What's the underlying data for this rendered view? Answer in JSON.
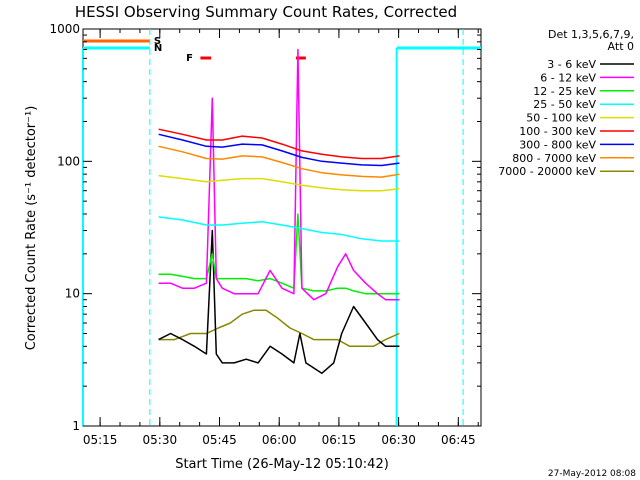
{
  "chart_data": {
    "type": "line",
    "title": "HESSI Observing Summary Count Rates, Corrected",
    "xlabel": "Start Time (26-May-12 05:10:42)",
    "ylabel": "Corrected Count Rate (s⁻¹ detector⁻¹)",
    "x_unit": "minutes since 05:10:42",
    "xlim": [
      0,
      100
    ],
    "ylim": [
      1,
      1000
    ],
    "yscale": "log",
    "x_ticks": [
      {
        "label": "05:15",
        "x": 4.3
      },
      {
        "label": "05:30",
        "x": 19.3
      },
      {
        "label": "05:45",
        "x": 34.3
      },
      {
        "label": "06:00",
        "x": 49.3
      },
      {
        "label": "06:15",
        "x": 64.3
      },
      {
        "label": "06:30",
        "x": 79.3
      },
      {
        "label": "06:45",
        "x": 94.3
      }
    ],
    "y_ticks": [
      {
        "label": "1",
        "y": 1
      },
      {
        "label": "10",
        "y": 10
      },
      {
        "label": "100",
        "y": 100
      },
      {
        "label": "1000",
        "y": 1000
      }
    ],
    "legend": {
      "header": [
        "Det 1,3,5,6,7,9,",
        "Att 0"
      ],
      "placement": "right"
    },
    "series": [
      {
        "name": "3 - 6 keV",
        "color": "#000000",
        "x": [
          19,
          22,
          25,
          28,
          31,
          32.5,
          33.5,
          35,
          38,
          41,
          44,
          47,
          50,
          53,
          54.5,
          56,
          60,
          63,
          65,
          68,
          71,
          74,
          76,
          79.5
        ],
        "y": [
          4.5,
          5,
          4.5,
          4,
          3.5,
          30,
          3.5,
          3,
          3,
          3.2,
          3,
          4,
          3.5,
          3,
          5,
          3,
          2.5,
          3,
          5,
          8,
          6,
          4.5,
          4,
          4
        ]
      },
      {
        "name": "6 - 12 keV",
        "color": "#ff00ff",
        "x": [
          19,
          22,
          25,
          28,
          31,
          32.5,
          33.5,
          35,
          38,
          41,
          44,
          47,
          50,
          53,
          54,
          55,
          58,
          61,
          64,
          66,
          68,
          71,
          74,
          76,
          79.5
        ],
        "y": [
          12,
          12,
          11,
          11,
          12,
          300,
          13,
          11,
          10,
          10,
          10,
          15,
          11,
          10,
          700,
          11,
          9,
          10,
          16,
          20,
          15,
          12,
          10,
          9,
          9
        ]
      },
      {
        "name": "12 - 25 keV",
        "color": "#00ee00",
        "x": [
          19,
          22,
          25,
          28,
          31,
          32.5,
          33.5,
          35,
          38,
          41,
          44,
          47,
          50,
          53,
          54,
          55,
          58,
          61,
          64,
          66,
          68,
          71,
          74,
          76,
          79.5
        ],
        "y": [
          14,
          14,
          13.5,
          13,
          13,
          20,
          13,
          13,
          13,
          13,
          12.5,
          13,
          12,
          11,
          40,
          11,
          10.5,
          10.5,
          11,
          11,
          10.5,
          10,
          10,
          10,
          10
        ]
      },
      {
        "name": "25 - 50 keV",
        "color": "#00ffff",
        "x": [
          19,
          25,
          31,
          35,
          40,
          45,
          50,
          55,
          60,
          65,
          70,
          75,
          79.5
        ],
        "y": [
          38,
          36,
          33,
          33,
          34,
          35,
          33,
          31,
          29,
          28,
          26,
          25,
          25
        ]
      },
      {
        "name": "50 - 100 keV",
        "color": "#dddd00",
        "x": [
          19,
          25,
          31,
          35,
          40,
          45,
          50,
          55,
          60,
          65,
          70,
          75,
          79.5
        ],
        "y": [
          78,
          74,
          70,
          72,
          74,
          74,
          70,
          66,
          63,
          61,
          60,
          60,
          62
        ]
      },
      {
        "name": "100 - 300 keV",
        "color": "#ff0000",
        "x": [
          19,
          25,
          31,
          35,
          40,
          45,
          50,
          55,
          60,
          65,
          70,
          75,
          79.5
        ],
        "y": [
          175,
          160,
          145,
          145,
          155,
          150,
          135,
          120,
          113,
          108,
          105,
          105,
          110
        ]
      },
      {
        "name": "300 - 800 keV",
        "color": "#0000ff",
        "x": [
          19,
          25,
          31,
          35,
          40,
          45,
          50,
          55,
          60,
          65,
          70,
          75,
          79.5
        ],
        "y": [
          160,
          145,
          130,
          128,
          135,
          133,
          120,
          107,
          100,
          97,
          94,
          93,
          97
        ]
      },
      {
        "name": "800 - 7000 keV",
        "color": "#ff8800",
        "x": [
          19,
          25,
          31,
          35,
          40,
          45,
          50,
          55,
          60,
          65,
          70,
          75,
          79.5
        ],
        "y": [
          130,
          118,
          105,
          104,
          110,
          108,
          98,
          88,
          82,
          79,
          77,
          76,
          80
        ]
      },
      {
        "name": "7000 - 20000 keV",
        "color": "#888800",
        "x": [
          19,
          23,
          27,
          31,
          34,
          37,
          40,
          43,
          46,
          49,
          52,
          55,
          58,
          61,
          64,
          67,
          70,
          73,
          76,
          79.5
        ],
        "y": [
          4.5,
          4.5,
          5,
          5,
          5.5,
          6,
          7,
          7.5,
          7.5,
          6.5,
          5.5,
          5,
          4.5,
          4.5,
          4.5,
          4,
          4,
          4,
          4.5,
          5
        ]
      }
    ],
    "flags": [
      {
        "label": "S",
        "color": "#ff6600"
      },
      {
        "label": "N",
        "color": "#00ffff"
      },
      {
        "label": "F",
        "color": "#ff0000"
      }
    ],
    "footer": "27-May-2012 08:08"
  }
}
